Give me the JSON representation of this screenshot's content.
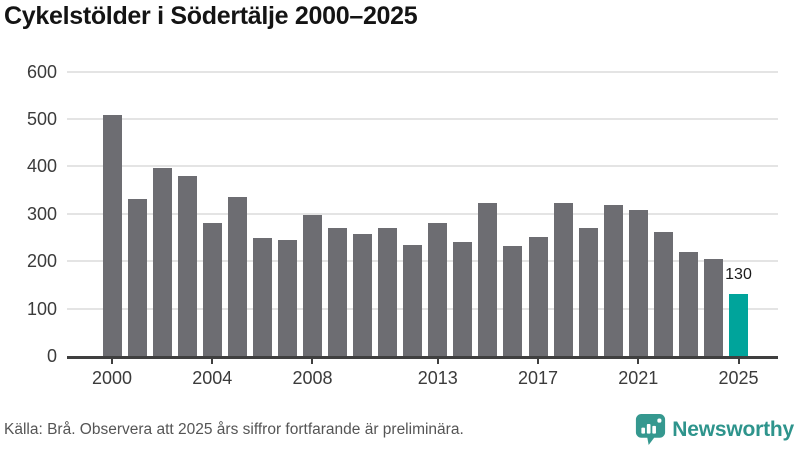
{
  "title": "Cykelstölder i Södertälje 2000–2025",
  "chart_data": {
    "type": "bar",
    "title": "Cykelstölder i Södertälje 2000–2025",
    "x": [
      2000,
      2001,
      2002,
      2003,
      2004,
      2005,
      2006,
      2007,
      2008,
      2009,
      2010,
      2011,
      2012,
      2013,
      2014,
      2015,
      2016,
      2017,
      2018,
      2019,
      2020,
      2021,
      2022,
      2023,
      2024,
      2025
    ],
    "values": [
      508,
      331,
      397,
      380,
      280,
      336,
      249,
      244,
      298,
      269,
      257,
      271,
      235,
      281,
      241,
      322,
      231,
      252,
      322,
      271,
      318,
      307,
      262,
      219,
      205,
      130
    ],
    "highlight": {
      "year": 2025,
      "value": 130,
      "label": "130"
    },
    "x_tick_labels": [
      "2000",
      "2004",
      "2008",
      "2013",
      "2017",
      "2021",
      "2025"
    ],
    "y_ticks": [
      0,
      100,
      200,
      300,
      400,
      500,
      600
    ],
    "ylim": [
      0,
      600
    ],
    "grid": true,
    "legend": "none",
    "bar_color": "#6d6d72",
    "highlight_color": "#00a49b"
  },
  "footer": {
    "source": "Källa: Brå. Observera att 2025 års siffror fortfarande är preliminära.",
    "brand": "Newsworthy"
  },
  "colors": {
    "accent_teal": "#00a49b",
    "bar_gray": "#6d6d72",
    "gridline": "#e4e4e4",
    "axis": "#3f3f3f",
    "brand_teal": "#2e948c",
    "text_dark": "#141414",
    "text_muted": "#555555"
  }
}
